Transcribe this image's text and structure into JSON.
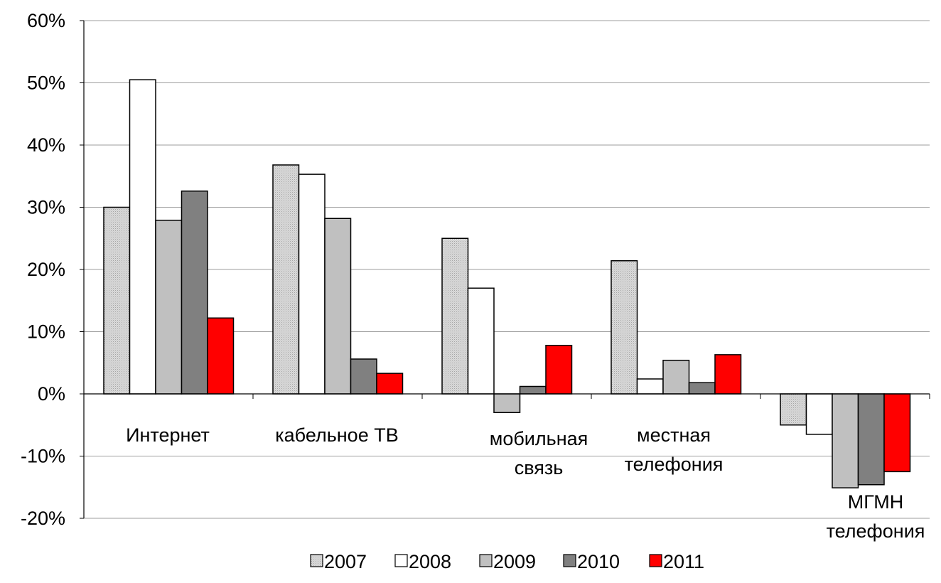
{
  "chart_data": {
    "type": "bar",
    "title": "",
    "xlabel": "",
    "ylabel": "",
    "ylim": [
      -20,
      60
    ],
    "y_ticks": [
      -20,
      -10,
      0,
      10,
      20,
      30,
      40,
      50,
      60
    ],
    "y_tick_labels": [
      "-20%",
      "-10%",
      "0%",
      "10%",
      "20%",
      "30%",
      "40%",
      "50%",
      "60%"
    ],
    "grid": true,
    "legend_position": "bottom",
    "categories": [
      [
        "Интернет"
      ],
      [
        "кабельное ТВ"
      ],
      [
        "мобильная",
        "связь"
      ],
      [
        "местная",
        "телефония"
      ],
      [
        "МГМН",
        "телефония"
      ]
    ],
    "series": [
      {
        "name": "2007",
        "values": [
          30.0,
          36.8,
          25.0,
          21.4,
          -5.0
        ],
        "color": "#d9d9d9",
        "pattern": "dotted"
      },
      {
        "name": "2008",
        "values": [
          50.5,
          35.3,
          17.0,
          2.4,
          -6.5
        ],
        "color": "#ffffff"
      },
      {
        "name": "2009",
        "values": [
          27.9,
          28.2,
          -3.0,
          5.4,
          -15.1
        ],
        "color": "#c0c0c0"
      },
      {
        "name": "2010",
        "values": [
          32.6,
          5.6,
          1.2,
          1.8,
          -14.6
        ],
        "color": "#808080"
      },
      {
        "name": "2011",
        "values": [
          12.2,
          3.3,
          7.8,
          6.3,
          -12.5
        ],
        "color": "#ff0000"
      }
    ]
  }
}
